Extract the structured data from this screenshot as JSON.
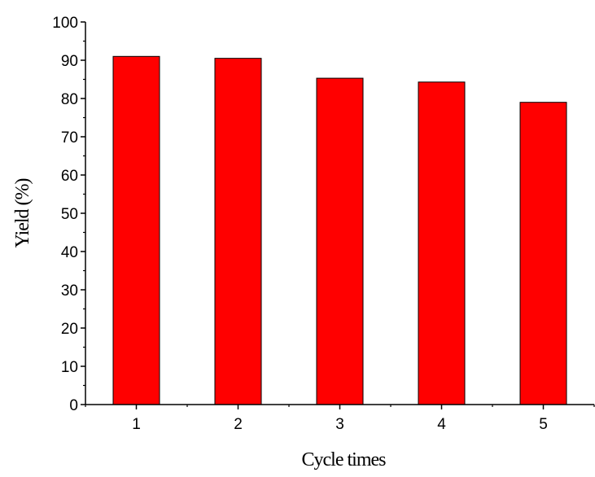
{
  "chart_data": {
    "type": "bar",
    "categories": [
      "1",
      "2",
      "3",
      "4",
      "5"
    ],
    "values": [
      91,
      90.5,
      85.3,
      84.3,
      79
    ],
    "title": "",
    "xlabel": "Cycle times",
    "ylabel": "Yield (%)",
    "ylim": [
      0,
      100
    ],
    "yticks": [
      0,
      10,
      20,
      30,
      40,
      50,
      60,
      70,
      80,
      90,
      100
    ],
    "grid": false,
    "bar_color": "#ff0000",
    "bar_edge_color": "#000000"
  }
}
